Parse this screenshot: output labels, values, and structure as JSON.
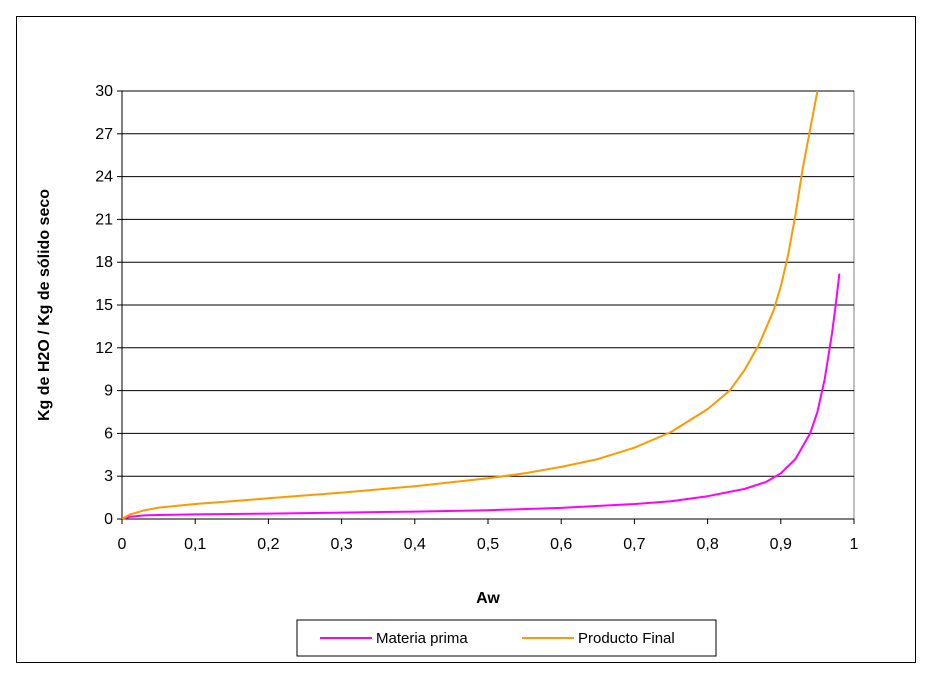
{
  "chart_data": {
    "type": "line",
    "title": "",
    "xlabel": "Aw",
    "ylabel": "Kg de H2O / Kg de sólido seco",
    "xlim": [
      0,
      1
    ],
    "ylim": [
      0,
      30
    ],
    "x_ticks": [
      0,
      0.1,
      0.2,
      0.3,
      0.4,
      0.5,
      0.6,
      0.7,
      0.8,
      0.9,
      1
    ],
    "x_tick_labels": [
      "0",
      "0,1",
      "0,2",
      "0,3",
      "0,4",
      "0,5",
      "0,6",
      "0,7",
      "0,8",
      "0,9",
      "1"
    ],
    "y_ticks": [
      0,
      3,
      6,
      9,
      12,
      15,
      18,
      21,
      24,
      27,
      30
    ],
    "y_tick_labels": [
      "0",
      "3",
      "6",
      "9",
      "12",
      "15",
      "18",
      "21",
      "24",
      "27",
      "30"
    ],
    "grid": "horizontal",
    "legend_position": "bottom",
    "series": [
      {
        "name": "Materia prima",
        "color": "#FF00FF",
        "x": [
          0,
          0.01,
          0.03,
          0.05,
          0.1,
          0.2,
          0.3,
          0.4,
          0.5,
          0.6,
          0.7,
          0.75,
          0.8,
          0.85,
          0.88,
          0.9,
          0.92,
          0.94,
          0.95,
          0.96,
          0.97,
          0.975,
          0.98
        ],
        "y": [
          0,
          0.15,
          0.25,
          0.28,
          0.32,
          0.38,
          0.45,
          0.52,
          0.62,
          0.78,
          1.05,
          1.25,
          1.6,
          2.1,
          2.6,
          3.2,
          4.2,
          6.0,
          7.5,
          9.8,
          13.0,
          15.0,
          17.2
        ]
      },
      {
        "name": "Producto Final",
        "color": "#FF9900",
        "x": [
          0,
          0.01,
          0.03,
          0.05,
          0.1,
          0.15,
          0.2,
          0.3,
          0.4,
          0.5,
          0.55,
          0.6,
          0.65,
          0.7,
          0.75,
          0.8,
          0.83,
          0.85,
          0.87,
          0.89,
          0.9,
          0.91,
          0.92,
          0.93,
          0.94,
          0.95
        ],
        "y": [
          0,
          0.3,
          0.6,
          0.8,
          1.05,
          1.25,
          1.45,
          1.85,
          2.3,
          2.85,
          3.2,
          3.65,
          4.2,
          5.0,
          6.1,
          7.7,
          9.0,
          10.4,
          12.2,
          14.6,
          16.3,
          18.5,
          21.3,
          24.6,
          27.3,
          30
        ]
      }
    ]
  }
}
